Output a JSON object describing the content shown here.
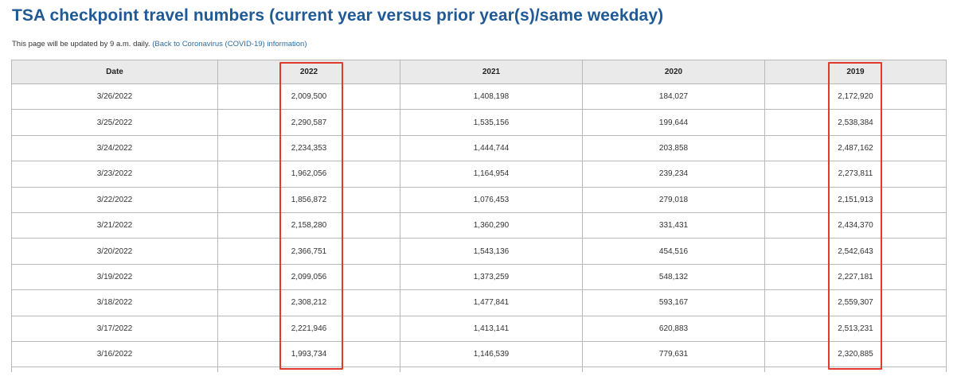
{
  "page": {
    "title": "TSA checkpoint travel numbers (current year versus prior year(s)/same weekday)",
    "subtitle_text": "This page will be updated by 9 a.m. daily.",
    "back_link_open": "(",
    "back_link_label": "Back to Coronavirus (COVID-19) information",
    "back_link_close": ")"
  },
  "table": {
    "headers": [
      "Date",
      "2022",
      "2021",
      "2020",
      "2019"
    ],
    "rows": [
      [
        "3/26/2022",
        "2,009,500",
        "1,408,198",
        "184,027",
        "2,172,920"
      ],
      [
        "3/25/2022",
        "2,290,587",
        "1,535,156",
        "199,644",
        "2,538,384"
      ],
      [
        "3/24/2022",
        "2,234,353",
        "1,444,744",
        "203,858",
        "2,487,162"
      ],
      [
        "3/23/2022",
        "1,962,056",
        "1,164,954",
        "239,234",
        "2,273,811"
      ],
      [
        "3/22/2022",
        "1,856,872",
        "1,076,453",
        "279,018",
        "2,151,913"
      ],
      [
        "3/21/2022",
        "2,158,280",
        "1,360,290",
        "331,431",
        "2,434,370"
      ],
      [
        "3/20/2022",
        "2,366,751",
        "1,543,136",
        "454,516",
        "2,542,643"
      ],
      [
        "3/19/2022",
        "2,099,056",
        "1,373,259",
        "548,132",
        "2,227,181"
      ],
      [
        "3/18/2022",
        "2,308,212",
        "1,477,841",
        "593,167",
        "2,559,307"
      ],
      [
        "3/17/2022",
        "2,221,946",
        "1,413,141",
        "620,883",
        "2,513,231"
      ],
      [
        "3/16/2022",
        "1,993,734",
        "1,146,539",
        "779,631",
        "2,320,885"
      ]
    ]
  },
  "annotations": {
    "highlight_color": "#e03a2e",
    "highlighted_columns": [
      "2022",
      "2019"
    ]
  },
  "colors": {
    "title": "#1f5a96",
    "link": "#2e6da4",
    "header_bg": "#eaeaea",
    "border": "#b8b8b8"
  }
}
